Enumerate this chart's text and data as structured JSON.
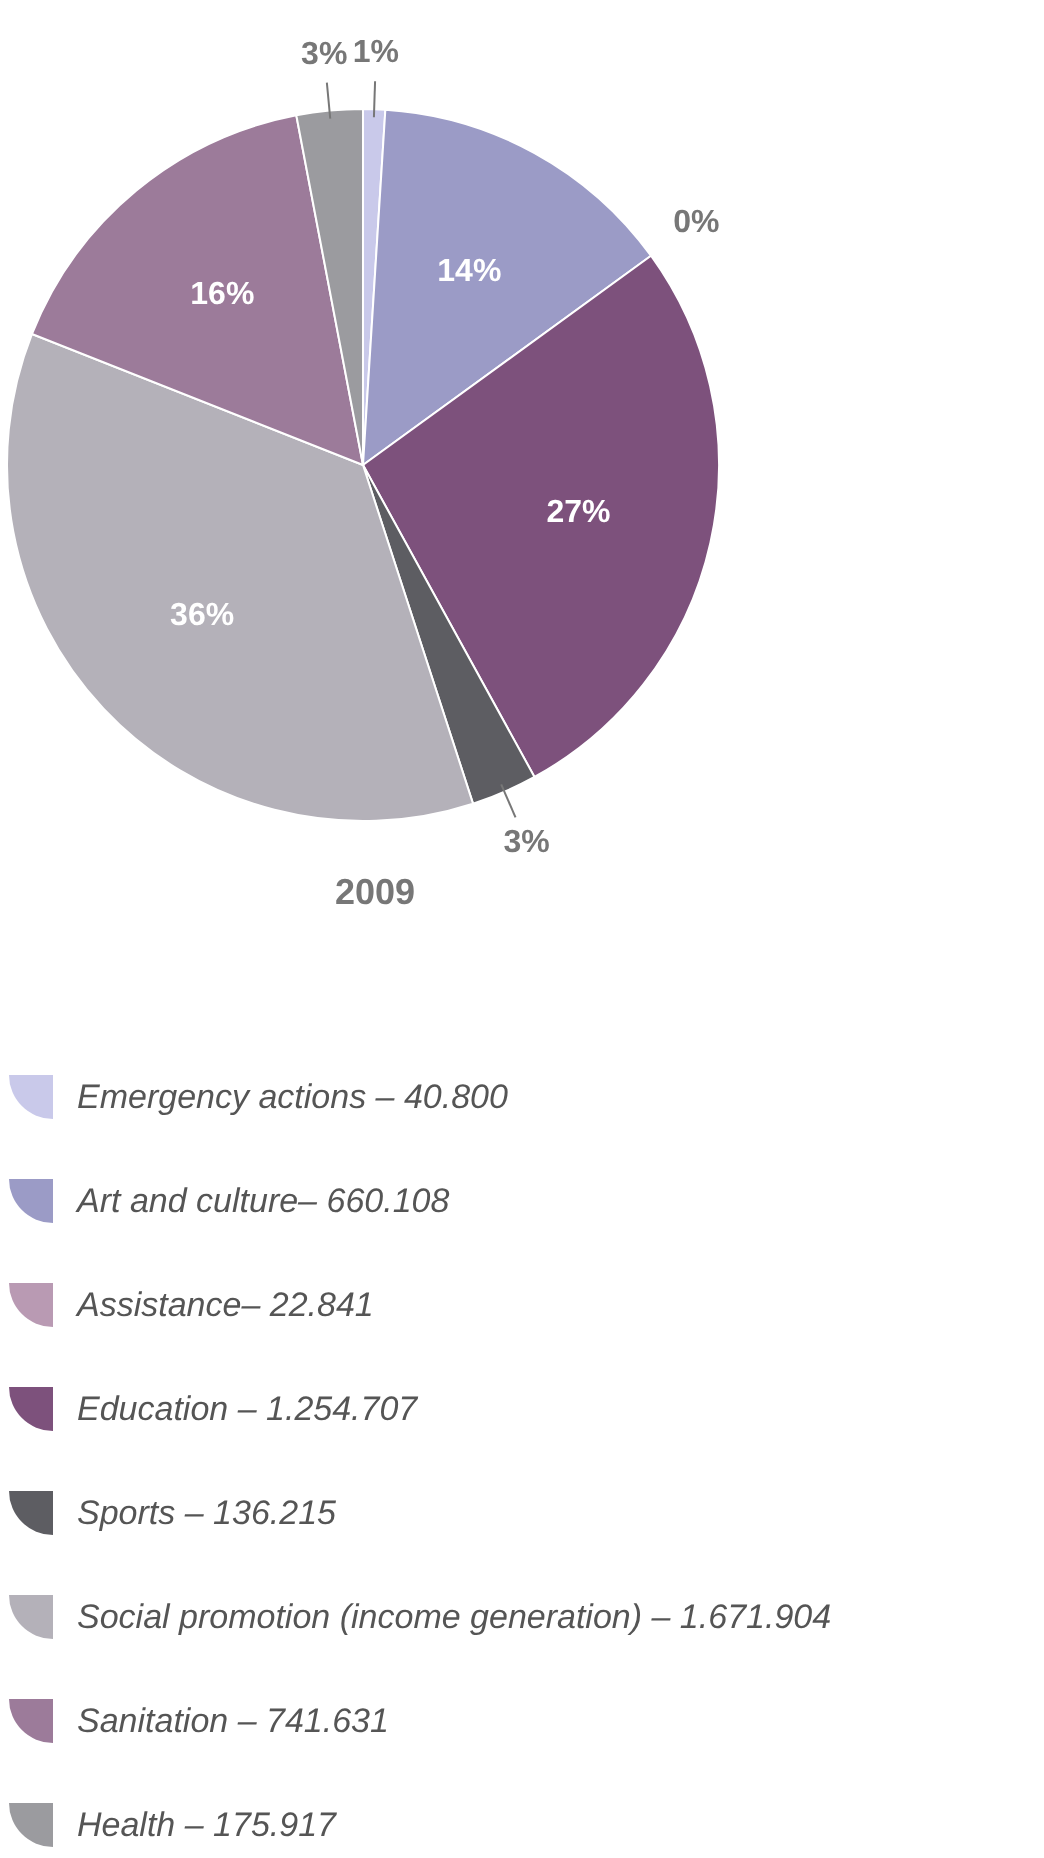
{
  "chart_data": {
    "type": "pie",
    "title": "2009",
    "categories": [
      "Emergency actions – 40.800",
      "Art and culture– 660.108",
      "Assistance– 22.841",
      "Education – 1.254.707",
      "Sports – 136.215",
      "Social promotion  (income generation) – 1.671.904",
      "Sanitation – 741.631",
      "Health – 175.917"
    ],
    "values": [
      1,
      14,
      0,
      27,
      3,
      36,
      16,
      3
    ],
    "value_labels": [
      "1%",
      "14%",
      "0%",
      "27%",
      "3%",
      "36%",
      "16%",
      "3%"
    ],
    "colors": [
      "#c9c9ea",
      "#9b9bc6",
      "#b99ab3",
      "#7d517c",
      "#5d5d62",
      "#b4b1b9",
      "#9c7b9a",
      "#9b9b9f"
    ],
    "legend": "bottom"
  }
}
